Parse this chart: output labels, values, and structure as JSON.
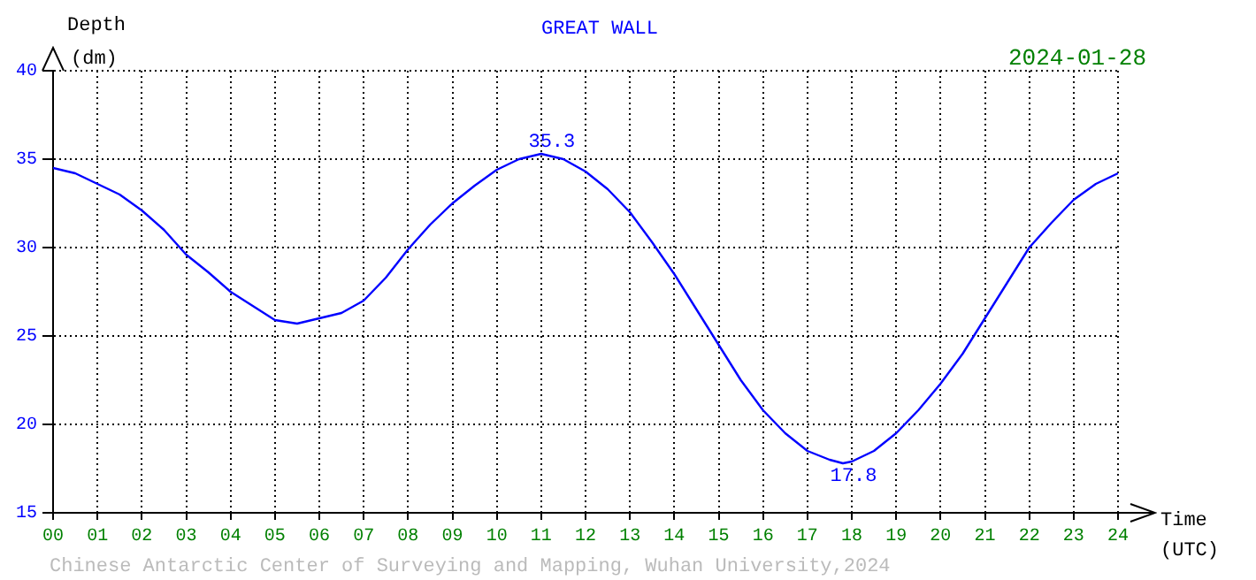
{
  "chart_data": {
    "type": "line",
    "title": "GREAT WALL",
    "xlabel": "Time (UTC)",
    "ylabel": "Depth (dm)",
    "x": [
      0,
      0.5,
      1,
      1.5,
      2,
      2.5,
      3,
      3.5,
      4,
      4.5,
      5,
      5.5,
      6,
      6.5,
      7,
      7.5,
      8,
      8.5,
      9,
      9.5,
      10,
      10.5,
      11,
      11.5,
      12,
      12.5,
      13,
      13.5,
      14,
      14.5,
      15,
      15.5,
      16,
      16.5,
      17,
      17.5,
      17.8,
      18,
      18.5,
      19,
      19.5,
      20,
      20.5,
      21,
      21.5,
      22,
      22.5,
      23,
      23.5,
      24
    ],
    "series": [
      {
        "color": "#0000ff",
        "values": [
          34.5,
          34.2,
          33.6,
          33.0,
          32.1,
          31.0,
          29.6,
          28.6,
          27.5,
          26.7,
          25.9,
          25.7,
          26.0,
          26.3,
          27.0,
          28.3,
          29.9,
          31.3,
          32.5,
          33.5,
          34.4,
          35.0,
          35.3,
          35.0,
          34.3,
          33.3,
          32.0,
          30.3,
          28.5,
          26.5,
          24.5,
          22.5,
          20.8,
          19.5,
          18.5,
          18.0,
          17.8,
          17.9,
          18.5,
          19.5,
          20.8,
          22.3,
          24.0,
          26.0,
          28.0,
          30.0,
          31.4,
          32.7,
          33.6,
          34.2
        ]
      }
    ],
    "xlim": [
      0,
      24
    ],
    "xticks": [
      {
        "value": 0,
        "label": "00"
      },
      {
        "value": 1,
        "label": "01"
      },
      {
        "value": 2,
        "label": "02"
      },
      {
        "value": 3,
        "label": "03"
      },
      {
        "value": 4,
        "label": "04"
      },
      {
        "value": 5,
        "label": "05"
      },
      {
        "value": 6,
        "label": "06"
      },
      {
        "value": 7,
        "label": "07"
      },
      {
        "value": 8,
        "label": "08"
      },
      {
        "value": 9,
        "label": "09"
      },
      10,
      11,
      12,
      13,
      14,
      15,
      16,
      17,
      18,
      19,
      20,
      21,
      22,
      23,
      24
    ],
    "ylim": [
      15,
      40
    ],
    "yticks": [
      15,
      20,
      25,
      30,
      35,
      40
    ],
    "grid": true,
    "legend": false,
    "marker": "none",
    "line_style": "solid",
    "annotations": [
      "2024-01-28",
      "Chinese Antarctic Center of Surveying and Mapping, Wuhan University,2024",
      {
        "text": "35.3",
        "x": 11,
        "y": 35.3
      },
      {
        "text": "17.8",
        "x": 17.8,
        "y": 17.8
      }
    ]
  }
}
